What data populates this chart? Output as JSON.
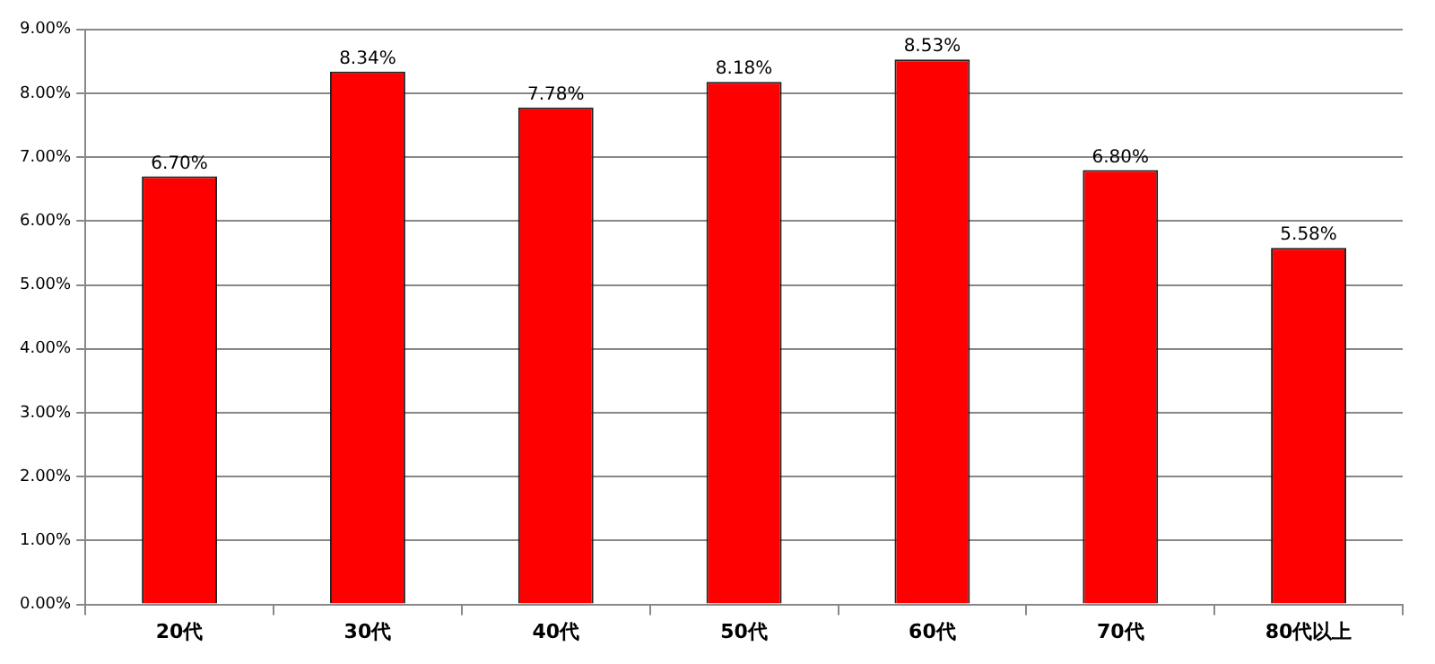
{
  "chart_data": {
    "type": "bar",
    "categories": [
      "20代",
      "30代",
      "40代",
      "50代",
      "60代",
      "70代",
      "80代以上"
    ],
    "values": [
      6.7,
      8.34,
      7.78,
      8.18,
      8.53,
      6.8,
      5.58
    ],
    "value_labels": [
      "6.70%",
      "8.34%",
      "7.78%",
      "8.18%",
      "8.53%",
      "6.80%",
      "5.58%"
    ],
    "color": "#ff0000",
    "ylim": [
      0,
      9
    ],
    "yticks": [
      {
        "value": 0,
        "label": "0.00%"
      },
      {
        "value": 1,
        "label": "1.00%"
      },
      {
        "value": 2,
        "label": "2.00%"
      },
      {
        "value": 3,
        "label": "3.00%"
      },
      {
        "value": 4,
        "label": "4.00%"
      },
      {
        "value": 5,
        "label": "5.00%"
      },
      {
        "value": 6,
        "label": "6.00%"
      },
      {
        "value": 7,
        "label": "7.00%"
      },
      {
        "value": 8,
        "label": "8.00%"
      },
      {
        "value": 9,
        "label": "9.00%"
      }
    ],
    "grid": "y",
    "legend": false
  }
}
